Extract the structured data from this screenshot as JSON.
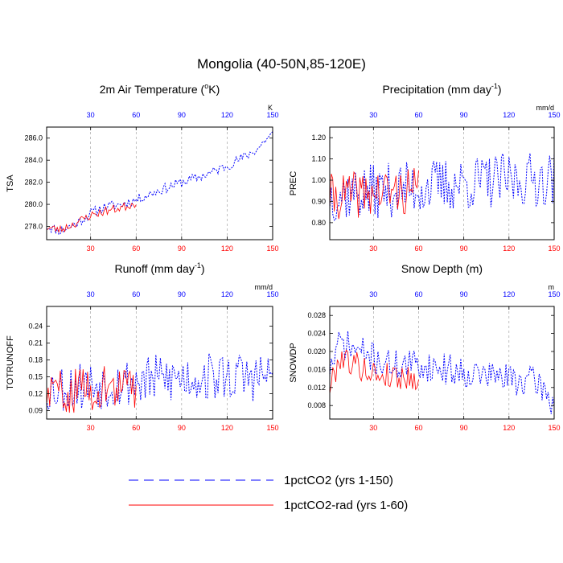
{
  "figure": {
    "title": "Mongolia (40-50N,85-120E)"
  },
  "legend": [
    {
      "name": "1pctCO2 (yrs 1-150)",
      "color": "#0000ff",
      "dash": "dashed"
    },
    {
      "name": "1pctCO2-rad (yrs 1-60)",
      "color": "#ff0000",
      "dash": "solid"
    }
  ],
  "chart_data": [
    {
      "type": "line",
      "title_main": "2m Air Temperature (",
      "title_sup": "o",
      "title_tail": "K)",
      "ylabel": "TSA",
      "units": "K",
      "xlim": [
        1,
        150
      ],
      "ylim": [
        276.8,
        287.0
      ],
      "xticks": [
        30,
        60,
        90,
        120,
        150
      ],
      "yticks": [
        278,
        280,
        282,
        284,
        286
      ],
      "ytick_labels": [
        "278.0",
        "280.0",
        "282.0",
        "284.0",
        "286.0"
      ],
      "series": [
        {
          "name": "1pctCO2 (yrs 1-150)",
          "color": "#0000ff",
          "years": [
            1,
            150
          ],
          "anchors": [
            [
              1,
              278.0
            ],
            [
              10,
              277.6
            ],
            [
              20,
              278.2
            ],
            [
              30,
              279.2
            ],
            [
              40,
              279.8
            ],
            [
              50,
              280.0
            ],
            [
              60,
              280.4
            ],
            [
              70,
              281.0
            ],
            [
              80,
              281.5
            ],
            [
              90,
              282.0
            ],
            [
              100,
              282.4
            ],
            [
              110,
              282.9
            ],
            [
              120,
              283.5
            ],
            [
              130,
              284.2
            ],
            [
              140,
              285.0
            ],
            [
              145,
              285.8
            ],
            [
              150,
              286.4
            ]
          ],
          "noise": 0.45,
          "seed": 11
        },
        {
          "name": "1pctCO2-rad (yrs 1-60)",
          "color": "#ff0000",
          "years": [
            1,
            60
          ],
          "anchors": [
            [
              1,
              277.9
            ],
            [
              10,
              277.7
            ],
            [
              20,
              278.3
            ],
            [
              30,
              279.0
            ],
            [
              40,
              279.4
            ],
            [
              50,
              279.7
            ],
            [
              60,
              280.1
            ]
          ],
          "noise": 0.4,
          "seed": 23
        }
      ]
    },
    {
      "type": "line",
      "title_main": "Precipitation (mm day",
      "title_sup": "-1",
      "title_tail": ")",
      "ylabel": "PREC",
      "units": "mm/d",
      "xlim": [
        1,
        150
      ],
      "ylim": [
        0.72,
        1.25
      ],
      "xticks": [
        30,
        60,
        90,
        120,
        150
      ],
      "yticks": [
        0.8,
        0.9,
        1.0,
        1.1,
        1.2
      ],
      "ytick_labels": [
        "0.80",
        "0.90",
        "1.00",
        "1.10",
        "1.20"
      ],
      "series": [
        {
          "name": "1pctCO2 (yrs 1-150)",
          "color": "#0000ff",
          "years": [
            1,
            150
          ],
          "anchors": [
            [
              1,
              0.93
            ],
            [
              50,
              0.96
            ],
            [
              100,
              0.99
            ],
            [
              150,
              1.01
            ]
          ],
          "noise": 0.13,
          "seed": 37
        },
        {
          "name": "1pctCO2-rad (yrs 1-60)",
          "color": "#ff0000",
          "years": [
            1,
            60
          ],
          "anchors": [
            [
              1,
              0.92
            ],
            [
              30,
              0.94
            ],
            [
              60,
              0.95
            ]
          ],
          "noise": 0.11,
          "seed": 41
        }
      ]
    },
    {
      "type": "line",
      "title_main": "Runoff (mm day",
      "title_sup": "-1",
      "title_tail": ")",
      "ylabel": "TOTRUNOFF",
      "units": "mm/d",
      "xlim": [
        1,
        150
      ],
      "ylim": [
        0.075,
        0.275
      ],
      "xticks": [
        30,
        60,
        90,
        120,
        150
      ],
      "yticks": [
        0.09,
        0.12,
        0.15,
        0.18,
        0.21,
        0.24
      ],
      "ytick_labels": [
        "0.09",
        "0.12",
        "0.15",
        "0.18",
        "0.21",
        "0.24"
      ],
      "series": [
        {
          "name": "1pctCO2 (yrs 1-150)",
          "color": "#0000ff",
          "years": [
            1,
            150
          ],
          "anchors": [
            [
              1,
              0.13
            ],
            [
              50,
              0.14
            ],
            [
              100,
              0.15
            ],
            [
              150,
              0.15
            ]
          ],
          "noise": 0.045,
          "seed": 53
        },
        {
          "name": "1pctCO2-rad (yrs 1-60)",
          "color": "#ff0000",
          "years": [
            1,
            60
          ],
          "anchors": [
            [
              1,
              0.12
            ],
            [
              30,
              0.13
            ],
            [
              60,
              0.13
            ]
          ],
          "noise": 0.04,
          "seed": 59
        }
      ]
    },
    {
      "type": "line",
      "title_main": "Snow Depth (m)",
      "title_sup": "",
      "title_tail": "",
      "ylabel": "SNOWDP",
      "units": "m",
      "xlim": [
        1,
        150
      ],
      "ylim": [
        0.005,
        0.03
      ],
      "xticks": [
        30,
        60,
        90,
        120,
        150
      ],
      "yticks": [
        0.008,
        0.012,
        0.016,
        0.02,
        0.024,
        0.028
      ],
      "ytick_labels": [
        "0.008",
        "0.012",
        "0.016",
        "0.020",
        "0.024",
        "0.028"
      ],
      "series": [
        {
          "name": "1pctCO2 (yrs 1-150)",
          "color": "#0000ff",
          "years": [
            1,
            150
          ],
          "anchors": [
            [
              1,
              0.016
            ],
            [
              8,
              0.022
            ],
            [
              40,
              0.017
            ],
            [
              60,
              0.017
            ],
            [
              100,
              0.015
            ],
            [
              140,
              0.013
            ],
            [
              150,
              0.008
            ]
          ],
          "noise": 0.0035,
          "seed": 71
        },
        {
          "name": "1pctCO2-rad (yrs 1-60)",
          "color": "#ff0000",
          "years": [
            1,
            60
          ],
          "anchors": [
            [
              1,
              0.012
            ],
            [
              8,
              0.019
            ],
            [
              30,
              0.015
            ],
            [
              60,
              0.014
            ]
          ],
          "noise": 0.003,
          "seed": 79
        }
      ]
    }
  ]
}
